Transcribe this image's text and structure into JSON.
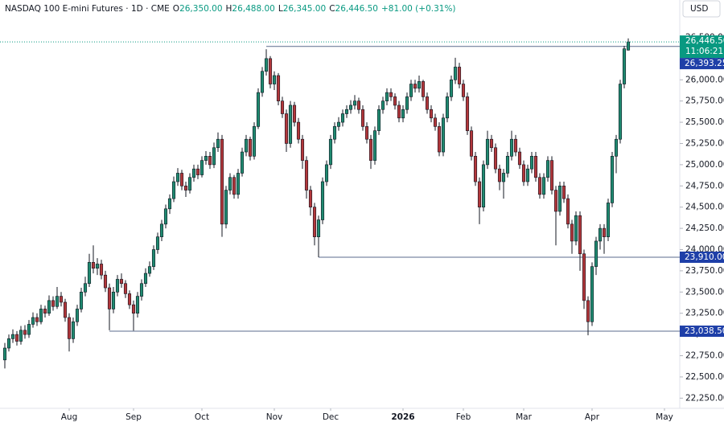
{
  "chart_data": {
    "type": "candlestick",
    "title": "NASDAQ 100 E-mini Futures · 1D · CME",
    "ohlc_legend": [
      {
        "key": "O",
        "value": "26,350.00"
      },
      {
        "key": "H",
        "value": "26,488.00"
      },
      {
        "key": "L",
        "value": "26,345.00"
      },
      {
        "key": "C",
        "value": "26,446.50"
      }
    ],
    "change": "+81.00 (+0.31%)",
    "currency": "USD",
    "up_color": "#1f8a70",
    "down_color": "#b2373b",
    "border_color": "#131722",
    "level_color": "#1e3fa8",
    "last_color": "#089981",
    "grid": false,
    "xlim": [
      -1.2,
      167.8
    ],
    "xticks": [
      {
        "value": 16,
        "label": "Aug"
      },
      {
        "value": 32,
        "label": "Sep"
      },
      {
        "value": 49,
        "label": "Oct"
      },
      {
        "value": 67,
        "label": "Nov"
      },
      {
        "value": 81,
        "label": "Dec"
      },
      {
        "value": 99,
        "label": "2026"
      },
      {
        "value": 114,
        "label": "Feb"
      },
      {
        "value": 129,
        "label": "Mar"
      },
      {
        "value": 146,
        "label": "Apr"
      },
      {
        "value": 164,
        "label": "May"
      }
    ],
    "ylim": [
      22130,
      26940
    ],
    "yticks": [
      {
        "value": 22250,
        "label": "22,250.00"
      },
      {
        "value": 22500,
        "label": "22,500.00"
      },
      {
        "value": 22750,
        "label": "22,750.00"
      },
      {
        "value": 23000,
        "label": "23,000.00"
      },
      {
        "value": 23250,
        "label": "23,250.00"
      },
      {
        "value": 23500,
        "label": "23,500.00"
      },
      {
        "value": 23750,
        "label": "23,750.00"
      },
      {
        "value": 24000,
        "label": "24,000.00"
      },
      {
        "value": 24250,
        "label": "24,250.00"
      },
      {
        "value": 24500,
        "label": "24,500.00"
      },
      {
        "value": 24750,
        "label": "24,750.00"
      },
      {
        "value": 25000,
        "label": "25,000.00"
      },
      {
        "value": 25250,
        "label": "25,250.00"
      },
      {
        "value": 25500,
        "label": "25,500.00"
      },
      {
        "value": 25750,
        "label": "25,750.00"
      },
      {
        "value": 26000,
        "label": "26,000.00"
      },
      {
        "value": 26250,
        "label": "26,250.00"
      },
      {
        "value": 26500,
        "label": "26,500.00"
      }
    ],
    "levels": [
      {
        "value": 26393.25,
        "label": "26,393.25",
        "from": 65
      },
      {
        "value": 23910,
        "label": "23,910.00",
        "from": 78
      },
      {
        "value": 23038.5,
        "label": "23,038.50",
        "from": 26
      }
    ],
    "last_price": {
      "value": 26446.5,
      "label": "26,446.50",
      "countdown": "11:06:21"
    },
    "candles": [
      [
        22700,
        22900,
        22600,
        22840
      ],
      [
        22840,
        23000,
        22800,
        22950
      ],
      [
        22950,
        23060,
        22900,
        23000
      ],
      [
        23000,
        23040,
        22870,
        22920
      ],
      [
        22920,
        23100,
        22880,
        23050
      ],
      [
        23050,
        23110,
        22950,
        23000
      ],
      [
        23000,
        23170,
        22960,
        23120
      ],
      [
        23120,
        23260,
        23080,
        23200
      ],
      [
        23200,
        23250,
        23100,
        23150
      ],
      [
        23150,
        23350,
        23120,
        23300
      ],
      [
        23300,
        23340,
        23200,
        23250
      ],
      [
        23250,
        23460,
        23220,
        23400
      ],
      [
        23400,
        23450,
        23280,
        23330
      ],
      [
        23330,
        23560,
        23300,
        23450
      ],
      [
        23450,
        23500,
        23330,
        23380
      ],
      [
        23380,
        23420,
        23150,
        23200
      ],
      [
        23200,
        23250,
        22800,
        22950
      ],
      [
        22950,
        23200,
        22900,
        23150
      ],
      [
        23150,
        23350,
        23100,
        23300
      ],
      [
        23300,
        23550,
        23260,
        23500
      ],
      [
        23500,
        23680,
        23450,
        23600
      ],
      [
        23600,
        23950,
        23560,
        23850
      ],
      [
        23850,
        24050,
        23720,
        23780
      ],
      [
        23780,
        23900,
        23700,
        23830
      ],
      [
        23830,
        23880,
        23650,
        23700
      ],
      [
        23700,
        23750,
        23500,
        23550
      ],
      [
        23550,
        23600,
        23050,
        23300
      ],
      [
        23300,
        23560,
        23250,
        23500
      ],
      [
        23500,
        23700,
        23450,
        23650
      ],
      [
        23650,
        23720,
        23550,
        23600
      ],
      [
        23600,
        23640,
        23430,
        23480
      ],
      [
        23480,
        23520,
        23300,
        23350
      ],
      [
        23350,
        23400,
        23045,
        23250
      ],
      [
        23250,
        23500,
        23200,
        23450
      ],
      [
        23450,
        23650,
        23400,
        23600
      ],
      [
        23600,
        23780,
        23560,
        23720
      ],
      [
        23720,
        23860,
        23680,
        23800
      ],
      [
        23800,
        24050,
        23760,
        24000
      ],
      [
        24000,
        24200,
        23950,
        24150
      ],
      [
        24150,
        24350,
        24100,
        24300
      ],
      [
        24300,
        24530,
        24250,
        24480
      ],
      [
        24480,
        24650,
        24420,
        24600
      ],
      [
        24600,
        24860,
        24560,
        24800
      ],
      [
        24800,
        24960,
        24750,
        24900
      ],
      [
        24900,
        24940,
        24700,
        24750
      ],
      [
        24750,
        24800,
        24620,
        24700
      ],
      [
        24700,
        24900,
        24660,
        24850
      ],
      [
        24850,
        25000,
        24800,
        24950
      ],
      [
        24950,
        25000,
        24830,
        24880
      ],
      [
        24880,
        25100,
        24850,
        25050
      ],
      [
        25050,
        25160,
        25000,
        25100
      ],
      [
        25100,
        25150,
        24950,
        25000
      ],
      [
        25000,
        25260,
        24960,
        25200
      ],
      [
        25200,
        25380,
        25150,
        25300
      ],
      [
        25300,
        25350,
        24150,
        24300
      ],
      [
        24300,
        24750,
        24250,
        24700
      ],
      [
        24700,
        24900,
        24650,
        24850
      ],
      [
        24850,
        24880,
        24600,
        24650
      ],
      [
        24650,
        24950,
        24600,
        24900
      ],
      [
        24900,
        25200,
        24860,
        25150
      ],
      [
        25150,
        25350,
        25100,
        25300
      ],
      [
        25300,
        25330,
        25050,
        25100
      ],
      [
        25100,
        25500,
        25060,
        25450
      ],
      [
        25450,
        25900,
        25420,
        25850
      ],
      [
        25850,
        26150,
        25800,
        26100
      ],
      [
        26100,
        26360,
        26050,
        26250
      ],
      [
        26250,
        26280,
        25900,
        25950
      ],
      [
        25950,
        26100,
        25880,
        26050
      ],
      [
        26050,
        26080,
        25700,
        25750
      ],
      [
        25750,
        25800,
        25550,
        25600
      ],
      [
        25600,
        25650,
        25150,
        25250
      ],
      [
        25250,
        25750,
        25200,
        25700
      ],
      [
        25700,
        25740,
        25450,
        25500
      ],
      [
        25500,
        25550,
        25250,
        25300
      ],
      [
        25300,
        25350,
        24950,
        25050
      ],
      [
        25050,
        25100,
        24600,
        24700
      ],
      [
        24700,
        24750,
        24400,
        24500
      ],
      [
        24500,
        24550,
        24050,
        24150
      ],
      [
        24150,
        24400,
        23910,
        24350
      ],
      [
        24350,
        24850,
        24300,
        24800
      ],
      [
        24800,
        25050,
        24750,
        25000
      ],
      [
        25000,
        25350,
        24950,
        25300
      ],
      [
        25300,
        25500,
        25250,
        25450
      ],
      [
        25450,
        25560,
        25400,
        25500
      ],
      [
        25500,
        25650,
        25450,
        25600
      ],
      [
        25600,
        25700,
        25550,
        25650
      ],
      [
        25650,
        25760,
        25600,
        25700
      ],
      [
        25700,
        25820,
        25650,
        25750
      ],
      [
        25750,
        25790,
        25600,
        25650
      ],
      [
        25650,
        25700,
        25400,
        25450
      ],
      [
        25450,
        25500,
        25250,
        25300
      ],
      [
        25300,
        25350,
        24950,
        25050
      ],
      [
        25050,
        25450,
        25000,
        25400
      ],
      [
        25400,
        25700,
        25350,
        25650
      ],
      [
        25650,
        25800,
        25600,
        25750
      ],
      [
        25750,
        25900,
        25700,
        25850
      ],
      [
        25850,
        25900,
        25750,
        25800
      ],
      [
        25800,
        25840,
        25650,
        25700
      ],
      [
        25700,
        25750,
        25500,
        25550
      ],
      [
        25550,
        25700,
        25500,
        25650
      ],
      [
        25650,
        25850,
        25600,
        25800
      ],
      [
        25800,
        26000,
        25750,
        25950
      ],
      [
        25950,
        26000,
        25850,
        25900
      ],
      [
        25900,
        26050,
        25850,
        25980
      ],
      [
        25980,
        26000,
        25750,
        25800
      ],
      [
        25800,
        25850,
        25600,
        25650
      ],
      [
        25650,
        25700,
        25500,
        25550
      ],
      [
        25550,
        25600,
        25400,
        25450
      ],
      [
        25450,
        25500,
        25100,
        25150
      ],
      [
        25150,
        25600,
        25100,
        25550
      ],
      [
        25550,
        25850,
        25500,
        25800
      ],
      [
        25800,
        26050,
        25750,
        26000
      ],
      [
        26000,
        26260,
        25950,
        26150
      ],
      [
        26150,
        26200,
        25900,
        25950
      ],
      [
        25950,
        26000,
        25750,
        25800
      ],
      [
        25800,
        25850,
        25350,
        25400
      ],
      [
        25400,
        25450,
        25050,
        25100
      ],
      [
        25100,
        25150,
        24750,
        24800
      ],
      [
        24800,
        24850,
        24300,
        24500
      ],
      [
        24500,
        25050,
        24450,
        25000
      ],
      [
        25000,
        25400,
        24950,
        25300
      ],
      [
        25300,
        25350,
        25150,
        25200
      ],
      [
        25200,
        25250,
        24900,
        24950
      ],
      [
        24950,
        25000,
        24700,
        24800
      ],
      [
        24800,
        24950,
        24600,
        24900
      ],
      [
        24900,
        25150,
        24850,
        25100
      ],
      [
        25100,
        25400,
        25050,
        25300
      ],
      [
        25300,
        25350,
        25100,
        25150
      ],
      [
        25150,
        25200,
        24950,
        25000
      ],
      [
        25000,
        25050,
        24750,
        24800
      ],
      [
        24800,
        25000,
        24750,
        24950
      ],
      [
        24950,
        25150,
        24900,
        25100
      ],
      [
        25100,
        25150,
        24800,
        24850
      ],
      [
        24850,
        24900,
        24600,
        24650
      ],
      [
        24650,
        24900,
        24600,
        24850
      ],
      [
        24850,
        25100,
        24800,
        25050
      ],
      [
        25050,
        25100,
        24650,
        24700
      ],
      [
        24700,
        24750,
        24050,
        24450
      ],
      [
        24450,
        24800,
        24400,
        24750
      ],
      [
        24750,
        24800,
        24550,
        24600
      ],
      [
        24600,
        24650,
        24250,
        24300
      ],
      [
        24300,
        24350,
        23950,
        24100
      ],
      [
        24100,
        24450,
        24050,
        24400
      ],
      [
        24400,
        24450,
        23750,
        23950
      ],
      [
        23950,
        24000,
        23300,
        23400
      ],
      [
        23400,
        23450,
        22990,
        23150
      ],
      [
        23150,
        23850,
        23100,
        23800
      ],
      [
        23800,
        24150,
        23700,
        24100
      ],
      [
        24100,
        24300,
        24000,
        24250
      ],
      [
        24250,
        24300,
        23950,
        24150
      ],
      [
        24150,
        24600,
        24100,
        24550
      ],
      [
        24550,
        25150,
        24500,
        25100
      ],
      [
        25100,
        25350,
        24900,
        25300
      ],
      [
        25300,
        26000,
        25250,
        25950
      ],
      [
        25950,
        26400,
        25900,
        26365.5
      ],
      [
        26350,
        26488,
        26345,
        26446.5
      ]
    ]
  }
}
